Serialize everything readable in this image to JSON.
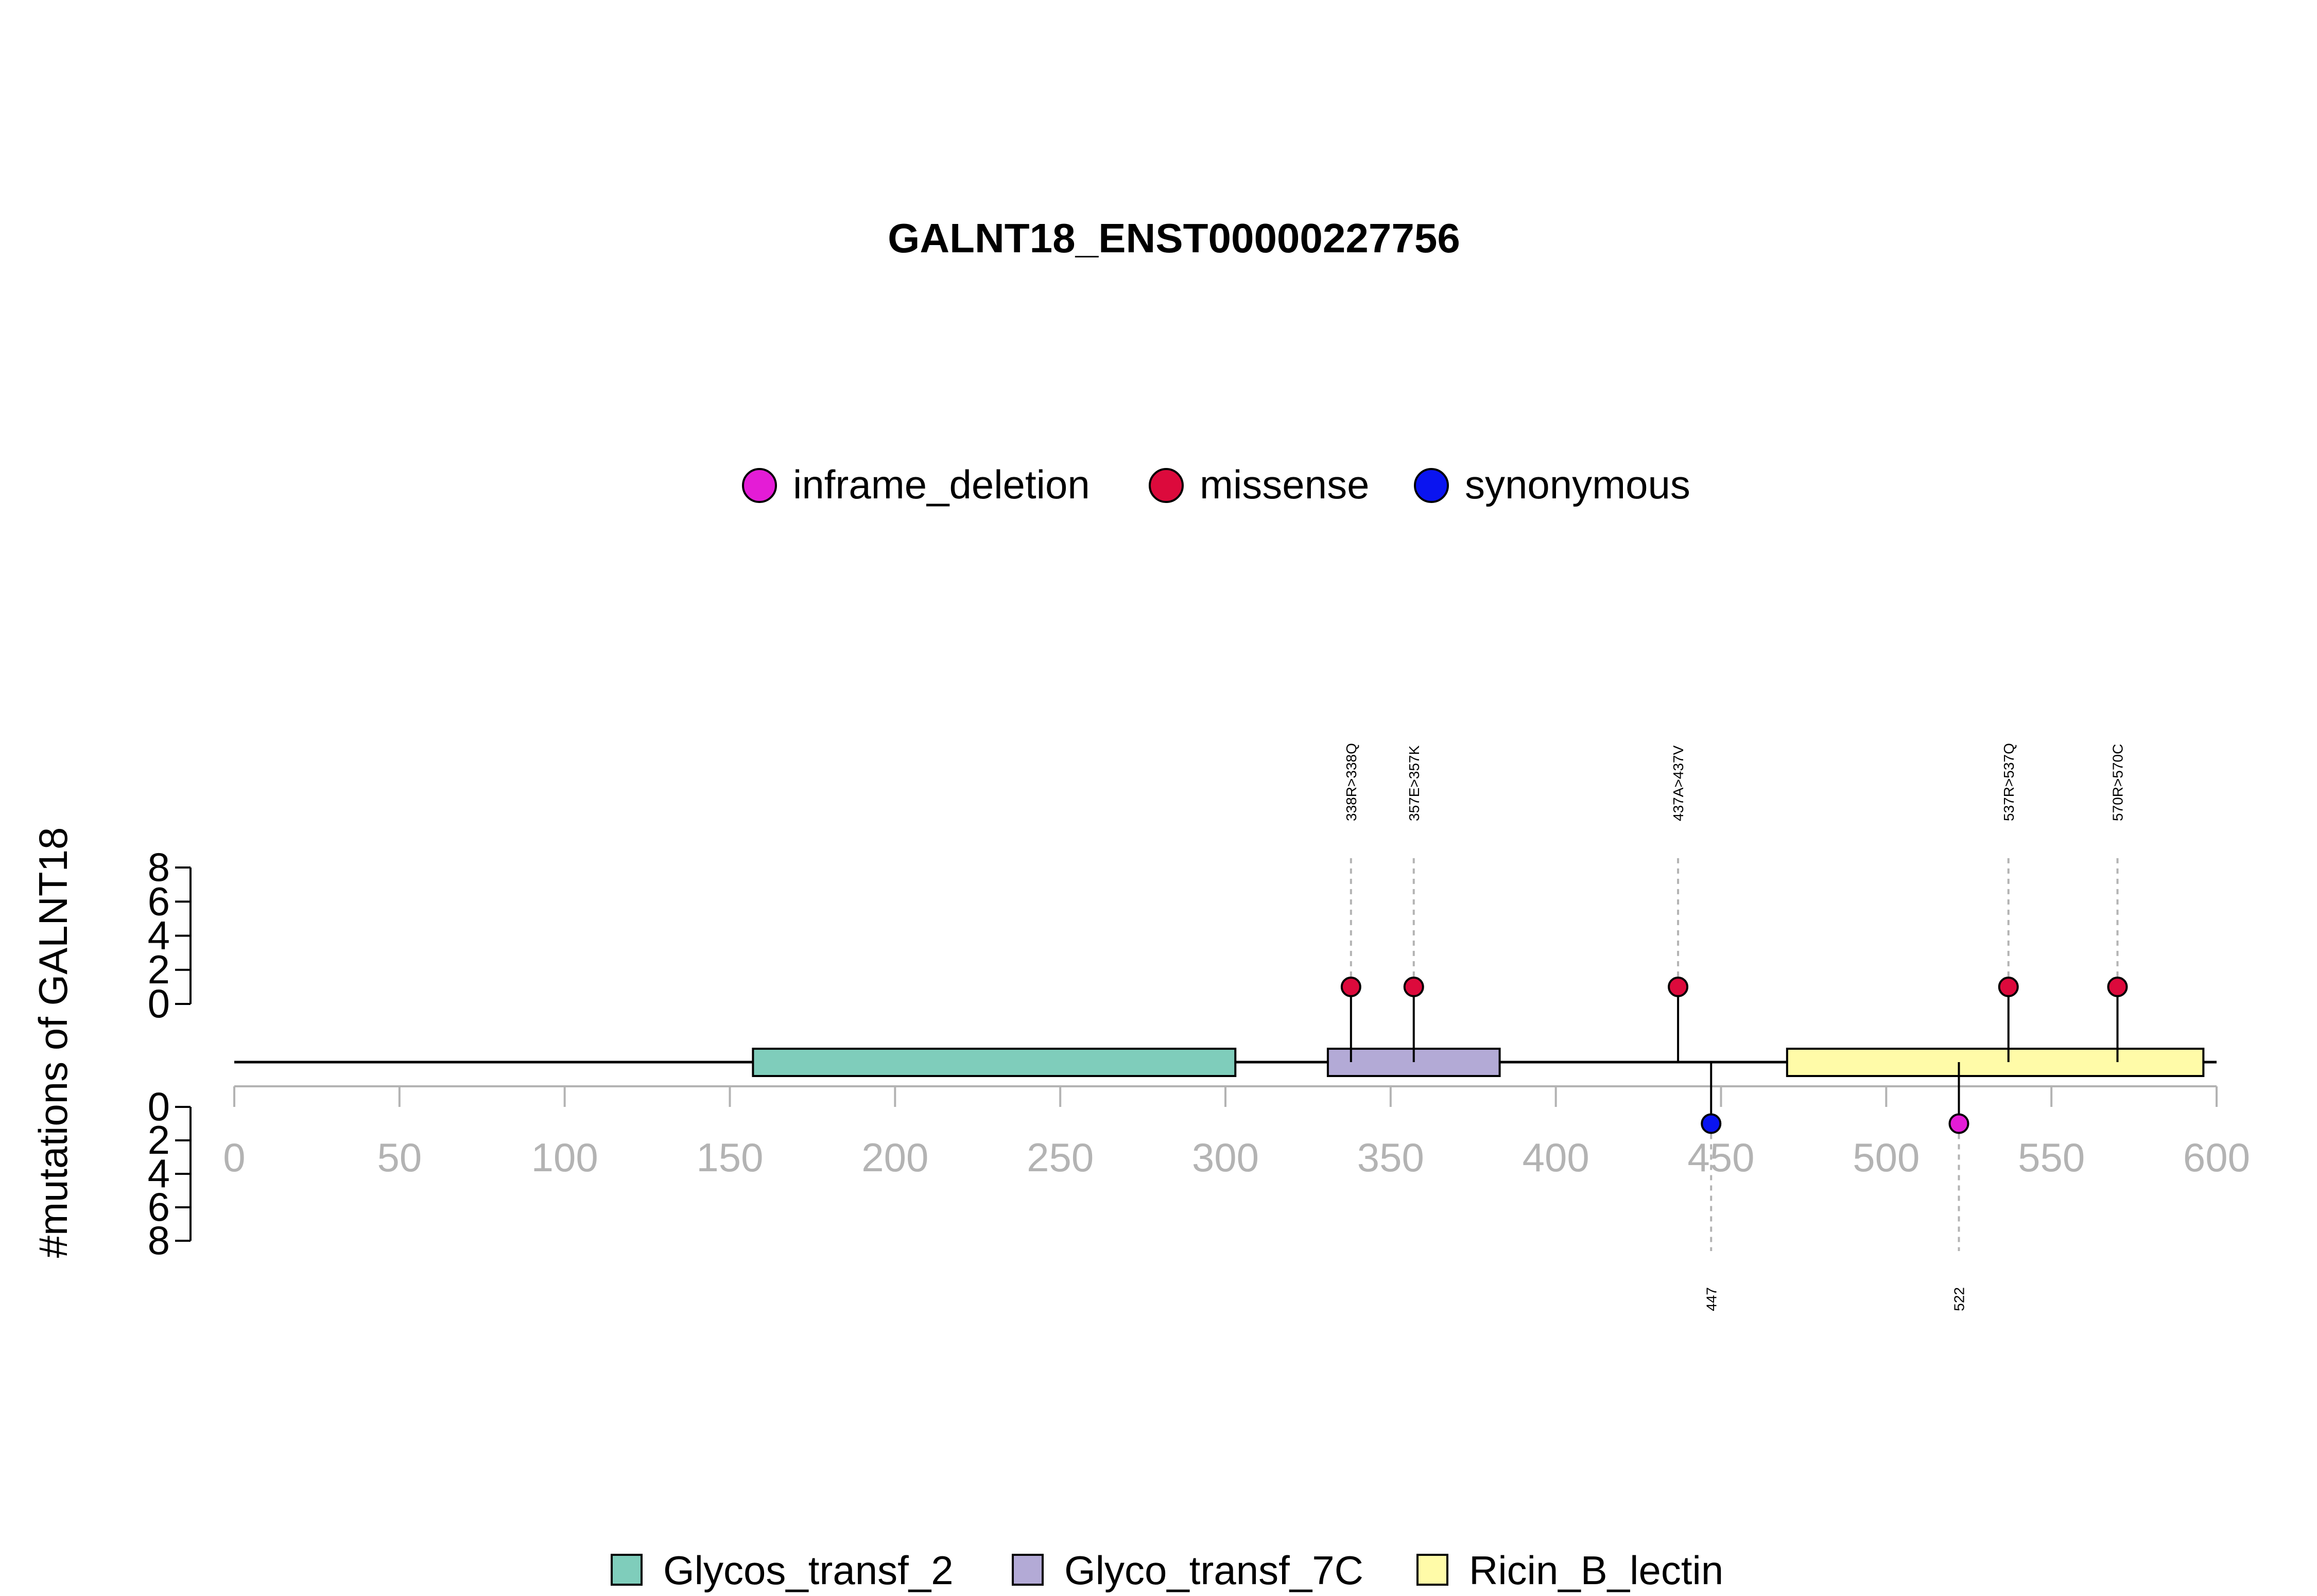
{
  "chart_data": {
    "type": "lollipop",
    "title": "GALNT18_ENST00000227756",
    "ylabel": "#mutations of GALNT18",
    "xlim": [
      0,
      600
    ],
    "x_ticks": [
      0,
      50,
      100,
      150,
      200,
      250,
      300,
      350,
      400,
      450,
      500,
      550,
      600
    ],
    "x_tick_labels": [
      "0",
      "50",
      "100",
      "150",
      "200",
      "250",
      "300",
      "350",
      "400",
      "450",
      "500",
      "550",
      "600"
    ],
    "ylim_top": [
      0,
      8
    ],
    "ylim_bottom": [
      0,
      8
    ],
    "y_ticks": [
      0,
      2,
      4,
      6,
      8
    ],
    "y_tick_labels": [
      "0",
      "2",
      "4",
      "6",
      "8"
    ],
    "protein_length": 600,
    "mutation_types": [
      {
        "name": "inframe_deletion",
        "color": "#E41CD6"
      },
      {
        "name": "missense",
        "color": "#DC0A3C"
      },
      {
        "name": "synonymous",
        "color": "#0A14F0"
      }
    ],
    "mutations_top": [
      {
        "position": 338,
        "count": 1,
        "type": "missense",
        "label": "338R>338Q"
      },
      {
        "position": 357,
        "count": 1,
        "type": "missense",
        "label": "357E>357K"
      },
      {
        "position": 437,
        "count": 1,
        "type": "missense",
        "label": "437A>437V"
      },
      {
        "position": 537,
        "count": 1,
        "type": "missense",
        "label": "537R>537Q"
      },
      {
        "position": 570,
        "count": 1,
        "type": "missense",
        "label": "570R>570C"
      }
    ],
    "mutations_bottom": [
      {
        "position": 447,
        "count": 1,
        "type": "synonymous",
        "label": "447"
      },
      {
        "position": 522,
        "count": 1,
        "type": "inframe_deletion",
        "label": "522"
      }
    ],
    "domains": [
      {
        "name": "Glycos_transf_2",
        "start": 157,
        "end": 303,
        "color": "#7FCDBB"
      },
      {
        "name": "Glyco_transf_7C",
        "start": 331,
        "end": 383,
        "color": "#B3AAD6"
      },
      {
        "name": "Ricin_B_lectin",
        "start": 470,
        "end": 596,
        "color": "#FFFBA8"
      }
    ]
  }
}
